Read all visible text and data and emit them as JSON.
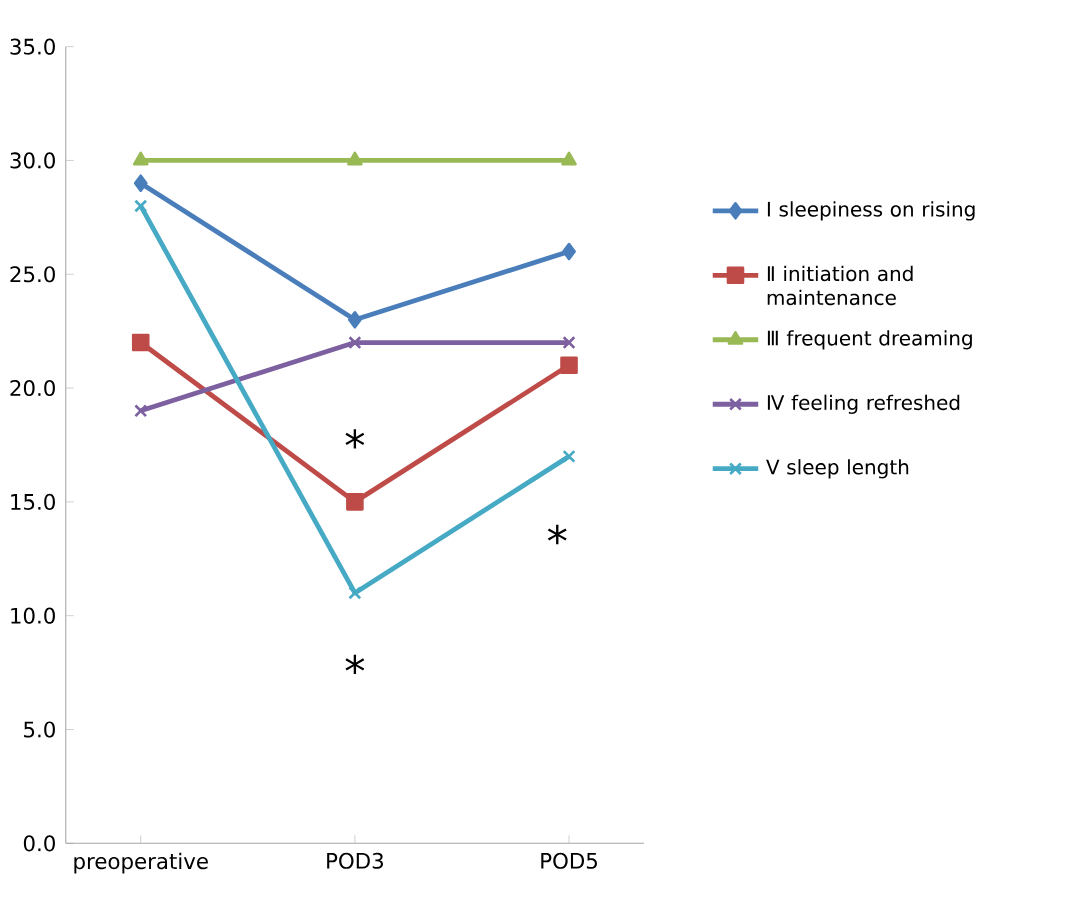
{
  "chart_data": {
    "type": "line",
    "categories": [
      "preoperative",
      "POD3",
      "POD5"
    ],
    "series": [
      {
        "name": "Ⅰ sleepiness on rising",
        "color": "#4a7ebb",
        "marker": "diamond",
        "values": [
          29,
          23,
          26
        ]
      },
      {
        "name": "Ⅱ initiation and maintenance",
        "color": "#be4b48",
        "marker": "square",
        "values": [
          22,
          15,
          21
        ]
      },
      {
        "name": "Ⅲ frequent dreaming",
        "color": "#98b954",
        "marker": "triangle",
        "values": [
          30,
          30,
          30
        ]
      },
      {
        "name": "Ⅳ feeling refreshed",
        "color": "#7d60a0",
        "marker": "cross",
        "values": [
          19,
          22,
          22
        ]
      },
      {
        "name": "Ⅴ sleep length",
        "color": "#46aac5",
        "marker": "cross",
        "values": [
          28,
          11,
          17
        ]
      }
    ],
    "ylim": [
      0,
      35
    ],
    "yticks": [
      {
        "value": 0,
        "label": "0.0"
      },
      {
        "value": 5,
        "label": "5.0"
      },
      {
        "value": 10,
        "label": "10.0"
      },
      {
        "value": 15,
        "label": "15.0"
      },
      {
        "value": 20,
        "label": "20.0"
      },
      {
        "value": 25,
        "label": "25.0"
      },
      {
        "value": 30,
        "label": "30.0"
      },
      {
        "value": 35,
        "label": "35.0"
      }
    ],
    "annotations": [
      "*",
      "*",
      "*"
    ],
    "grid": false,
    "legend": "right",
    "line_style": "solid"
  }
}
